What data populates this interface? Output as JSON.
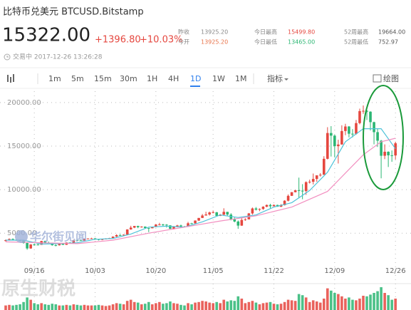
{
  "header": {
    "title": "比特币兑美元 BTCUSD.Bitstamp",
    "price": "15322.00",
    "change": "+1396.80",
    "change_pct": "+10.03%",
    "status": "交易中 2017-12-26 13:26:28",
    "stats": [
      {
        "label": "昨收",
        "value": "13925.20",
        "color": "#888888"
      },
      {
        "label": "今开",
        "value": "13925.20",
        "color": "#e8734a"
      },
      {
        "label": "今日最高",
        "value": "15499.80",
        "color": "#e5473f"
      },
      {
        "label": "今日最低",
        "value": "13465.00",
        "color": "#2bb673"
      },
      {
        "label": "52周最高",
        "value": "19664.00",
        "color": "#555555"
      },
      {
        "label": "52周最低",
        "value": "752.97",
        "color": "#555555"
      }
    ]
  },
  "toolbar": {
    "periods": [
      "1m",
      "5m",
      "15m",
      "30m",
      "1H",
      "4H",
      "1D",
      "1W",
      "1M"
    ],
    "active_period": 6,
    "indicator": "指标",
    "draw": "绘图"
  },
  "watermarks": [
    "华尔街见闻",
    "原生财税"
  ],
  "chart_data": {
    "type": "candlestick",
    "up_color": "#e5473f",
    "down_color": "#2bb673",
    "categories": [
      null,
      null,
      null,
      null,
      null,
      null,
      null,
      null,
      "09/16",
      null,
      null,
      null,
      null,
      null,
      null,
      null,
      null,
      null,
      null,
      null,
      null,
      null,
      null,
      null,
      null,
      "10/03",
      null,
      null,
      null,
      null,
      null,
      null,
      null,
      null,
      null,
      null,
      null,
      null,
      null,
      null,
      null,
      null,
      "10/20",
      null,
      null,
      null,
      null,
      null,
      null,
      null,
      null,
      null,
      null,
      null,
      null,
      null,
      null,
      null,
      "11/05",
      null,
      null,
      null,
      null,
      null,
      null,
      null,
      null,
      null,
      null,
      null,
      null,
      null,
      null,
      null,
      null,
      "11/22",
      null,
      null,
      null,
      null,
      null,
      null,
      null,
      null,
      null,
      null,
      null,
      null,
      null,
      null,
      null,
      null,
      "12/09",
      null,
      null,
      null,
      null,
      null,
      null,
      null,
      null,
      null,
      null,
      null,
      null,
      null,
      null,
      null,
      null,
      "12/26"
    ],
    "open": [
      4100,
      4200,
      4330,
      4230,
      4200,
      4160,
      3870,
      3250,
      3700,
      3690,
      3670,
      4100,
      3910,
      3890,
      3620,
      3610,
      3790,
      3670,
      3930,
      3890,
      4210,
      4190,
      4160,
      4340,
      4390,
      4410,
      4320,
      4230,
      4330,
      4380,
      4440,
      4610,
      4780,
      4760,
      4830,
      5430,
      5640,
      5830,
      5690,
      5760,
      5600,
      5570,
      5710,
      5990,
      6010,
      5980,
      5900,
      5510,
      5730,
      5890,
      5770,
      5740,
      6140,
      6130,
      6450,
      6750,
      7030,
      7150,
      7380,
      7400,
      6990,
      7130,
      7450,
      7140,
      6590,
      6340,
      5870,
      6520,
      6590,
      7270,
      7840,
      7700,
      7780,
      8040,
      8240,
      8090,
      8240,
      8040,
      8220,
      8730,
      9290,
      9710,
      9930,
      9880,
      9840,
      10860,
      10910,
      11230,
      11640,
      11710,
      13540,
      16500,
      16200,
      14990,
      15180,
      16730,
      17250,
      16420,
      16410,
      17640,
      19020,
      19050,
      18950,
      17750,
      16600,
      15620,
      13890,
      14350,
      13940,
      13925.2
    ],
    "high": [
      4280,
      4400,
      4400,
      4300,
      4260,
      4200,
      3920,
      3750,
      3830,
      3800,
      4130,
      4120,
      4040,
      3920,
      3720,
      3820,
      3800,
      3950,
      3960,
      4240,
      4260,
      4230,
      4360,
      4410,
      4470,
      4430,
      4350,
      4360,
      4420,
      4470,
      4630,
      4870,
      4900,
      4870,
      5450,
      5850,
      5840,
      5860,
      5790,
      5770,
      5600,
      5740,
      6040,
      6190,
      6070,
      6040,
      5920,
      5750,
      5960,
      5980,
      5830,
      6300,
      6190,
      6470,
      6750,
      7200,
      7460,
      7480,
      7600,
      7440,
      7200,
      7860,
      7450,
      7300,
      6800,
      6460,
      6750,
      6710,
      7320,
      7950,
      8000,
      7850,
      8100,
      8290,
      8370,
      8300,
      8270,
      8340,
      8780,
      9450,
      9720,
      9960,
      11380,
      10630,
      10950,
      11150,
      11850,
      11640,
      11900,
      13840,
      17170,
      17290,
      16300,
      15730,
      17390,
      17560,
      17300,
      16950,
      18000,
      19300,
      19664,
      19140,
      19000,
      17800,
      17000,
      15700,
      15200,
      14400,
      14500,
      15499.8
    ],
    "low": [
      4050,
      4150,
      4180,
      4120,
      4080,
      3800,
      3100,
      3200,
      3600,
      3620,
      3650,
      3860,
      3840,
      3570,
      3500,
      3580,
      3640,
      3650,
      3850,
      3880,
      4150,
      4120,
      4140,
      4300,
      4360,
      4270,
      4170,
      4200,
      4310,
      4340,
      4420,
      4560,
      4720,
      4730,
      4810,
      5400,
      5580,
      5570,
      5640,
      5540,
      5120,
      5550,
      5700,
      5900,
      5820,
      5650,
      5480,
      5420,
      5700,
      5730,
      5680,
      5740,
      6050,
      6100,
      6400,
      6740,
      7030,
      7020,
      7290,
      6960,
      6970,
      7040,
      7020,
      6470,
      6250,
      5500,
      5840,
      6420,
      6590,
      7130,
      7600,
      7530,
      7680,
      7980,
      7830,
      8090,
      8030,
      8000,
      8180,
      8650,
      9280,
      9680,
      9000,
      8900,
      9400,
      10700,
      10600,
      10900,
      11500,
      11710,
      13470,
      13800,
      13700,
      13000,
      15180,
      16250,
      16000,
      16000,
      16300,
      17500,
      18700,
      17990,
      16800,
      15200,
      14900,
      11300,
      13500,
      12600,
      13200,
      13465
    ],
    "close": [
      4200,
      4330,
      4230,
      4200,
      4160,
      3870,
      3250,
      3700,
      3690,
      3670,
      4100,
      3910,
      3890,
      3620,
      3610,
      3790,
      3670,
      3930,
      3890,
      4210,
      4190,
      4160,
      4340,
      4390,
      4410,
      4320,
      4230,
      4330,
      4380,
      4440,
      4610,
      4780,
      4760,
      4830,
      5430,
      5640,
      5830,
      5690,
      5760,
      5600,
      5570,
      5710,
      5990,
      6010,
      5980,
      5900,
      5510,
      5730,
      5890,
      5770,
      5740,
      6140,
      6130,
      6450,
      6750,
      7030,
      7150,
      7380,
      7400,
      6990,
      7130,
      7450,
      7140,
      6590,
      6340,
      5870,
      6520,
      6590,
      7270,
      7840,
      7700,
      7780,
      8040,
      8240,
      8090,
      8240,
      8040,
      8220,
      8730,
      9290,
      9710,
      9930,
      9880,
      9840,
      10860,
      10910,
      11230,
      11640,
      11710,
      13540,
      16500,
      16200,
      14990,
      15180,
      16730,
      17250,
      16420,
      16410,
      17640,
      19020,
      19050,
      18950,
      17750,
      16600,
      15620,
      13890,
      14350,
      13940,
      13925.2,
      15322
    ],
    "volume": [
      8,
      9,
      8,
      9,
      10,
      14,
      22,
      18,
      12,
      10,
      12,
      10,
      9,
      11,
      10,
      8,
      8,
      9,
      8,
      10,
      9,
      8,
      9,
      8,
      8,
      8,
      9,
      8,
      7,
      8,
      10,
      12,
      11,
      10,
      16,
      18,
      14,
      13,
      10,
      11,
      14,
      10,
      12,
      14,
      11,
      12,
      15,
      12,
      11,
      9,
      8,
      12,
      10,
      13,
      14,
      16,
      15,
      13,
      12,
      14,
      12,
      18,
      15,
      17,
      16,
      24,
      20,
      12,
      14,
      16,
      13,
      10,
      12,
      13,
      14,
      11,
      10,
      11,
      14,
      18,
      17,
      16,
      28,
      26,
      22,
      14,
      17,
      15,
      13,
      20,
      38,
      34,
      30,
      28,
      24,
      20,
      22,
      18,
      17,
      20,
      25,
      24,
      27,
      30,
      33,
      40,
      30,
      26,
      18,
      20
    ],
    "lines": [
      {
        "color": "#4fc3d9",
        "x": [
          0,
          5,
          10,
          15,
          20,
          25,
          30,
          35,
          40,
          45,
          50,
          55,
          60,
          65,
          70,
          75,
          80,
          85,
          90,
          95,
          100,
          105,
          109
        ],
        "values": [
          4200,
          4200,
          3750,
          3800,
          3900,
          4300,
          4400,
          4900,
          5700,
          5800,
          5700,
          6300,
          7100,
          6800,
          7100,
          8000,
          8500,
          9900,
          12000,
          15500,
          17000,
          17000,
          14700
        ]
      },
      {
        "color": "#f28fc0",
        "x": [
          0,
          10,
          20,
          30,
          40,
          50,
          60,
          70,
          80,
          90,
          100,
          105,
          109
        ],
        "values": [
          4000,
          3900,
          3800,
          4200,
          5000,
          5700,
          6400,
          7000,
          8000,
          9800,
          14000,
          15500,
          15900
        ]
      }
    ],
    "ylim": [
      1500,
      21300
    ],
    "yticks": [
      {
        "value": 5000,
        "label": "5000.00"
      },
      {
        "value": 10000,
        "label": "10000.00"
      },
      {
        "value": 15000,
        "label": "15000.00"
      },
      {
        "value": 20000,
        "label": "20000.00"
      }
    ],
    "grid": true
  }
}
